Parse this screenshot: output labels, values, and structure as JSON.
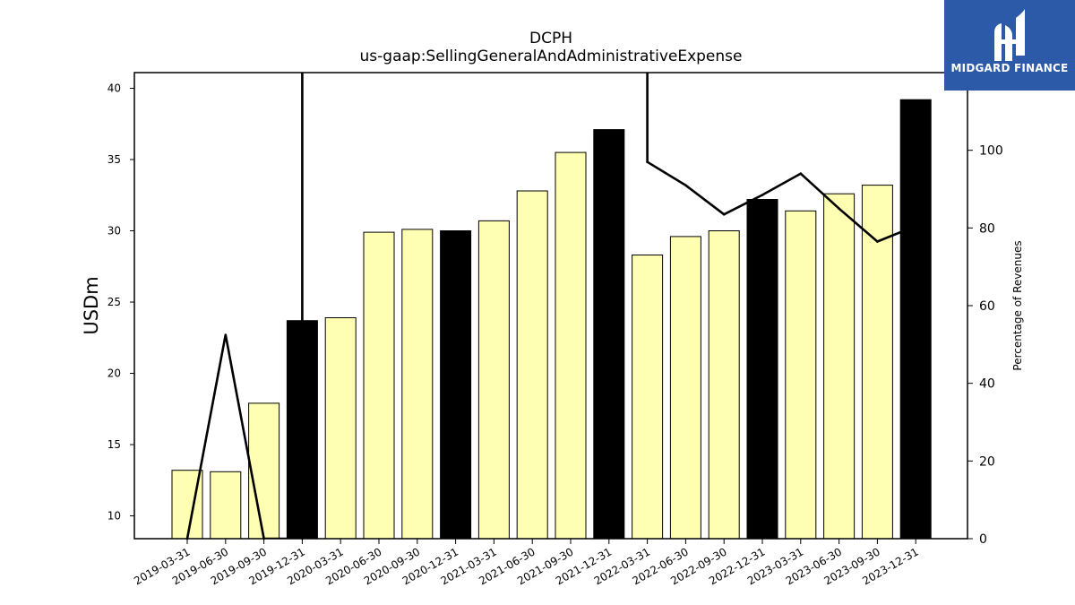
{
  "chart_data": {
    "type": "bar",
    "title": "DCPH",
    "subtitle": "us-gaap:SellingGeneralAndAdministrativeExpense",
    "ylabel": "USDm",
    "y2label": "Percentage of Revenues",
    "ylim": [
      8.4,
      41.1
    ],
    "y2lim": [
      0,
      120
    ],
    "yticks": [
      10,
      15,
      20,
      25,
      30,
      35,
      40
    ],
    "y2ticks": [
      0,
      20,
      40,
      60,
      80,
      100
    ],
    "categories": [
      "2019-03-31",
      "2019-06-30",
      "2019-09-30",
      "2019-12-31",
      "2020-03-31",
      "2020-06-30",
      "2020-09-30",
      "2020-12-31",
      "2021-03-31",
      "2021-06-30",
      "2021-09-30",
      "2021-12-31",
      "2022-03-31",
      "2022-06-30",
      "2022-09-30",
      "2022-12-31",
      "2023-03-31",
      "2023-06-30",
      "2023-09-30",
      "2023-12-31"
    ],
    "series": [
      {
        "kind": "bar",
        "values": [
          13.2,
          13.1,
          17.9,
          23.7,
          23.9,
          29.9,
          30.1,
          30.0,
          30.7,
          32.8,
          35.5,
          37.1,
          28.3,
          29.6,
          30.0,
          32.2,
          31.4,
          32.6,
          33.2,
          39.2
        ],
        "annual_flags": [
          false,
          false,
          false,
          true,
          false,
          false,
          false,
          true,
          false,
          false,
          false,
          true,
          false,
          false,
          false,
          true,
          false,
          false,
          false,
          true
        ]
      },
      {
        "kind": "line",
        "axis": "right",
        "values": [
          0,
          52.5,
          0,
          0,
          null,
          null,
          null,
          null,
          null,
          null,
          null,
          null,
          97,
          91,
          83.5,
          88.5,
          94,
          85,
          76.5,
          80.5
        ]
      }
    ],
    "colors": {
      "quarter_bar": "#ffffb3",
      "annual_bar": "#000000",
      "bar_edge": "#000000",
      "line": "#000000"
    }
  },
  "logo": {
    "text": "MIDGARD FINANCE",
    "background": "#2d5aa8",
    "icon": "midgard-logo-icon"
  }
}
